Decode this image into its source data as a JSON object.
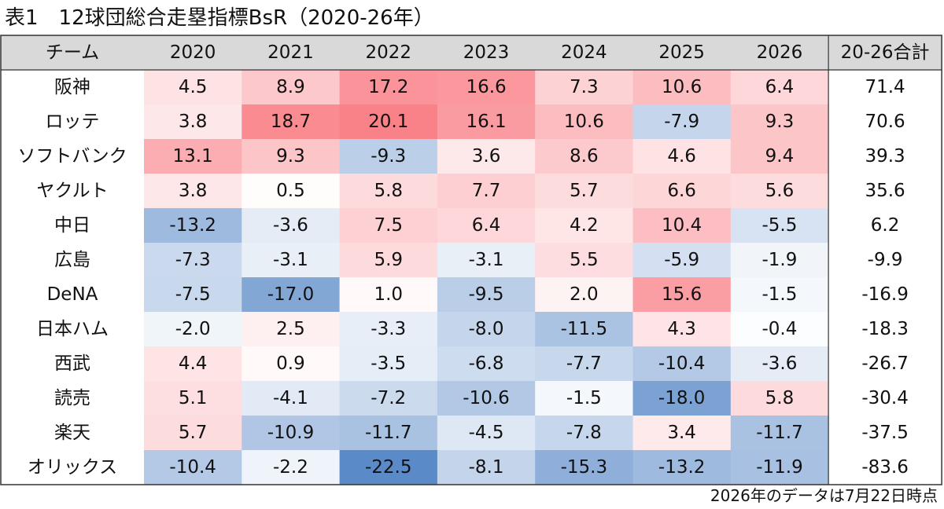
{
  "title": "表1　12球団総合走塁指標BsR（2020-26年）",
  "footnote": "2026年のデータは7月22日時点",
  "chart_data": {
    "type": "heatmap",
    "corner_label": "チーム",
    "columns": [
      "2020",
      "2021",
      "2022",
      "2023",
      "2024",
      "2025",
      "2026"
    ],
    "total_label": "20-26合計",
    "rows": [
      {
        "team": "阪神",
        "values": [
          "4.5",
          "8.9",
          "17.2",
          "16.6",
          "7.3",
          "10.6",
          "6.4"
        ],
        "total": "71.4"
      },
      {
        "team": "ロッテ",
        "values": [
          "3.8",
          "18.7",
          "20.1",
          "16.1",
          "10.6",
          "-7.9",
          "9.3"
        ],
        "total": "70.6"
      },
      {
        "team": "ソフトバンク",
        "values": [
          "13.1",
          "9.3",
          "-9.3",
          "3.6",
          "8.6",
          "4.6",
          "9.4"
        ],
        "total": "39.3"
      },
      {
        "team": "ヤクルト",
        "values": [
          "3.8",
          "0.5",
          "5.8",
          "7.7",
          "5.7",
          "6.6",
          "5.6"
        ],
        "total": "35.6"
      },
      {
        "team": "中日",
        "values": [
          "-13.2",
          "-3.6",
          "7.5",
          "6.4",
          "4.2",
          "10.4",
          "-5.5"
        ],
        "total": "6.2"
      },
      {
        "team": "広島",
        "values": [
          "-7.3",
          "-3.1",
          "5.9",
          "-3.1",
          "5.5",
          "-5.9",
          "-1.9"
        ],
        "total": "-9.9"
      },
      {
        "team": "DeNA",
        "values": [
          "-7.5",
          "-17.0",
          "1.0",
          "-9.5",
          "2.0",
          "15.6",
          "-1.5"
        ],
        "total": "-16.9"
      },
      {
        "team": "日本ハム",
        "values": [
          "-2.0",
          "2.5",
          "-3.3",
          "-8.0",
          "-11.5",
          "4.3",
          "-0.4"
        ],
        "total": "-18.3"
      },
      {
        "team": "西武",
        "values": [
          "4.4",
          "0.9",
          "-3.5",
          "-6.8",
          "-7.7",
          "-10.4",
          "-3.6"
        ],
        "total": "-26.7"
      },
      {
        "team": "読売",
        "values": [
          "5.1",
          "-4.1",
          "-7.2",
          "-10.6",
          "-1.5",
          "-18.0",
          "5.8"
        ],
        "total": "-30.4"
      },
      {
        "team": "楽天",
        "values": [
          "5.7",
          "-10.9",
          "-11.7",
          "-4.5",
          "-7.8",
          "3.4",
          "-11.7"
        ],
        "total": "-37.5"
      },
      {
        "team": "オリックス",
        "values": [
          "-10.4",
          "-2.2",
          "-22.5",
          "-8.1",
          "-15.3",
          "-13.2",
          "-11.9"
        ],
        "total": "-83.6"
      }
    ],
    "color_scale": {
      "negative": "#5b8ac8",
      "neutral": "#ffffff",
      "positive": "#f8737b"
    },
    "header_background": "#d9d9d9"
  }
}
